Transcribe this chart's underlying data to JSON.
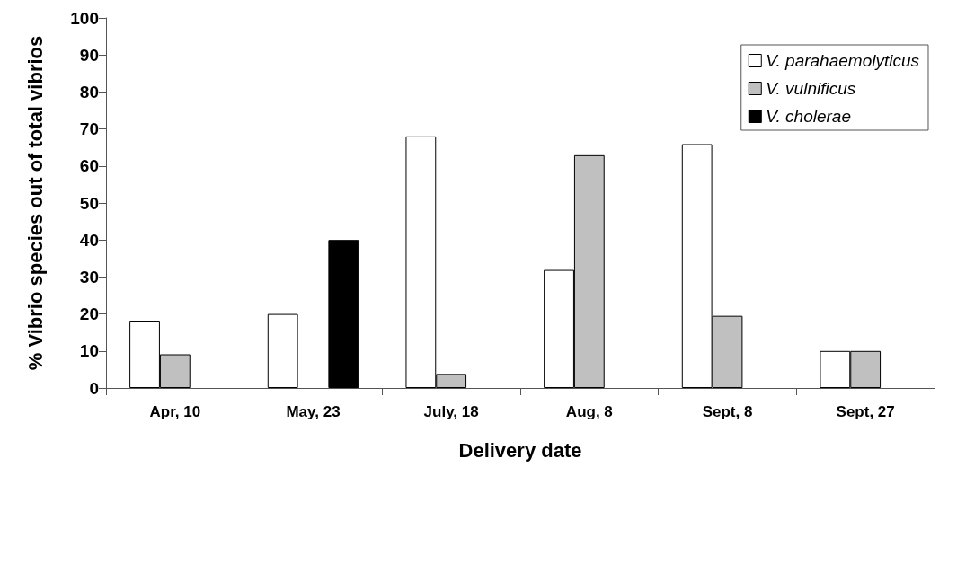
{
  "chart_data": {
    "type": "bar",
    "xlabel": "Delivery date",
    "ylabel": "% Vibrio species out of total vibrios",
    "categories": [
      "Apr, 10",
      "May, 23",
      "July, 18",
      "Aug, 8",
      "Sept, 8",
      "Sept, 27"
    ],
    "series": [
      {
        "name": "V. parahaemolyticus",
        "color": "#ffffff",
        "values": [
          18.2,
          20,
          68,
          31.9,
          65.9,
          10
        ]
      },
      {
        "name": "V. vulnificus",
        "color": "#c0c0c0",
        "values": [
          9.1,
          null,
          3.8,
          62.9,
          19.5,
          10
        ]
      },
      {
        "name": "V. cholerae",
        "color": "#000000",
        "values": [
          null,
          40,
          null,
          null,
          null,
          null
        ]
      }
    ],
    "ylim": [
      0,
      100
    ],
    "yticks": [
      0,
      10,
      20,
      30,
      40,
      50,
      60,
      70,
      80,
      90,
      100
    ],
    "grid": false,
    "legend": "top right"
  }
}
